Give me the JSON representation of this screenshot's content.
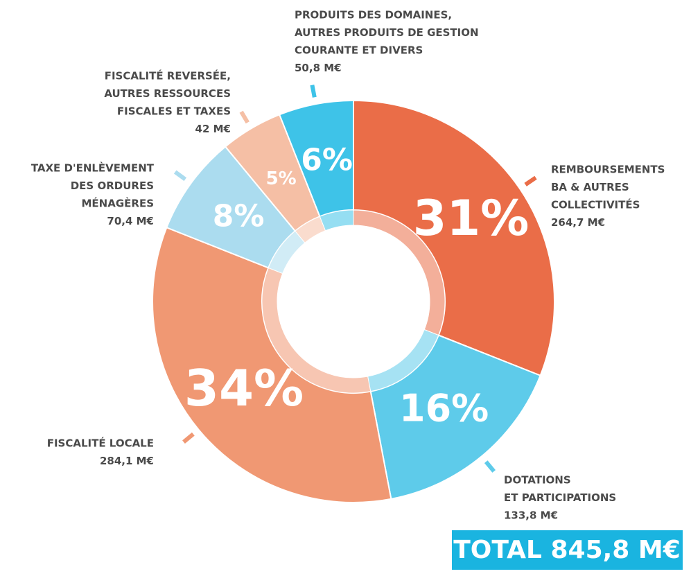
{
  "chart_data": {
    "type": "donut",
    "categories": [
      [
        "REMBOURSEMENTS",
        "BA & AUTRES",
        "COLLECTIVITÉS"
      ],
      [
        "DOTATIONS",
        "ET PARTICIPATIONS"
      ],
      [
        "FISCALITÉ LOCALE"
      ],
      [
        "TAXE D'ENLÈVEMENT",
        "DES ORDURES",
        "MÉNAGÈRES"
      ],
      [
        "FISCALITÉ REVERSÉE,",
        "AUTRES RESSOURCES",
        "FISCALES ET TAXES"
      ],
      [
        "PRODUITS DES DOMAINES,",
        "AUTRES PRODUITS DE GESTION",
        "COURANTE ET DIVERS"
      ]
    ],
    "amounts": [
      "264,7 M€",
      "133,8 M€",
      "284,1 M€",
      "70,4 M€",
      "42 M€",
      "50,8 M€"
    ],
    "values": [
      31,
      16,
      34,
      8,
      5,
      6
    ],
    "value_labels": [
      "31%",
      "16%",
      "34%",
      "8%",
      "5%",
      "6%"
    ],
    "colors": [
      "#ea6d48",
      "#5ecbea",
      "#f09873",
      "#abdcef",
      "#f5bfa5",
      "#3ec3e8"
    ],
    "total": "TOTAL 845,8 M€"
  }
}
